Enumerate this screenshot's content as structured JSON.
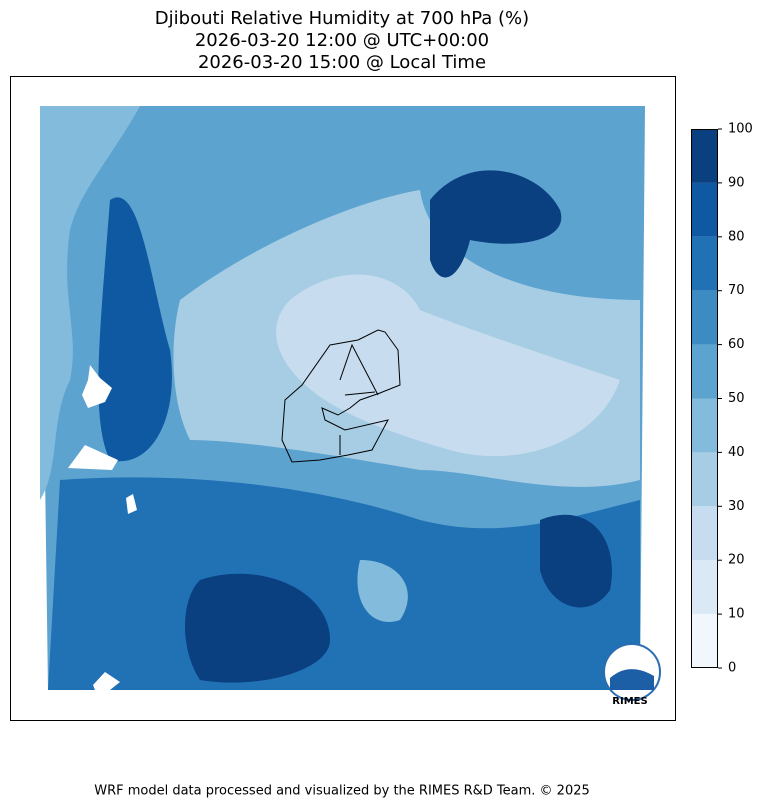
{
  "title": [
    "Djibouti Relative Humidity at 700 hPa (%)",
    "2026-03-20 12:00 @ UTC+00:00",
    "2026-03-20 15:00 @ Local Time"
  ],
  "colorbar": {
    "ticks": [
      0,
      10,
      20,
      30,
      40,
      50,
      60,
      70,
      80,
      90,
      100
    ],
    "colors": [
      "#f1f7fd",
      "#dbe9f6",
      "#c7dcef",
      "#a6cde3",
      "#82bbdb",
      "#5ca3d0",
      "#3c8bc3",
      "#2171b5",
      "#0f58a2",
      "#0a3f80"
    ]
  },
  "logo": "RIMES",
  "footer": "WRF model data processed and visualized by the RIMES R&D Team. © 2025"
}
